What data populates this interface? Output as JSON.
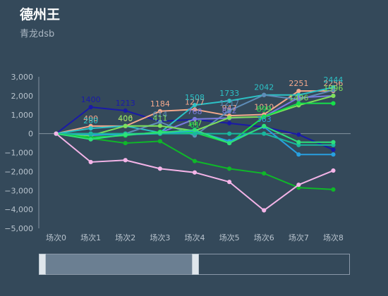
{
  "header": {
    "title": "德州王",
    "subtitle": "青龙dsb"
  },
  "slider": {
    "start": 0,
    "end": 0.5
  },
  "chart_data": {
    "type": "line",
    "categories": [
      "场次0",
      "场次1",
      "场次2",
      "场次3",
      "场次4",
      "场次5",
      "场次6",
      "场次7",
      "场次8"
    ],
    "ylim": [
      -5000,
      3000
    ],
    "yticks": [
      3000,
      2000,
      1000,
      0,
      -1000,
      -2000,
      -3000,
      -4000,
      -5000
    ],
    "ytick_labels": [
      "3,000",
      "2,000",
      "1,000",
      "0",
      "−1,000",
      "−2,000",
      "−3,000",
      "−4,000",
      "−5,000"
    ],
    "grid": false,
    "series": [
      {
        "color": "#1a1aa8",
        "values": [
          0,
          1400,
          1213,
          650,
          750,
          550,
          350,
          -50,
          -850
        ],
        "labels": {
          "1": "1400",
          "2": "1213"
        }
      },
      {
        "color": "#f4a98c",
        "values": [
          0,
          400,
          400,
          1184,
          1277,
          947,
          1010,
          2251,
          2256
        ],
        "labels": {
          "1": "400",
          "2": "400",
          "3": "1184",
          "4": "1277",
          "5": "947",
          "6": "1010",
          "7": "2251",
          "8": "2256"
        }
      },
      {
        "color": "#2cc2c6",
        "values": [
          0,
          280,
          406,
          54,
          1508,
          1733,
          2042,
          2042,
          2444
        ],
        "labels": {
          "1": "280",
          "4": "1508",
          "5": "1733",
          "6": "2042",
          "8": "2444"
        }
      },
      {
        "color": "#5e8db8",
        "values": [
          0,
          -100,
          0,
          614,
          -100,
          1217,
          2042,
          1800,
          2300
        ],
        "labels": {
          "3": "614",
          "5": "1217"
        }
      },
      {
        "color": "#7a7ae0",
        "values": [
          0,
          0,
          -50,
          50,
          768,
          822,
          900,
          1900,
          2000
        ],
        "labels": {
          "4": "768",
          "5": "822"
        }
      },
      {
        "color": "#7ee05a",
        "values": [
          0,
          -100,
          406,
          411,
          147,
          845,
          890,
          1496,
          1996
        ],
        "labels": {
          "2": "406",
          "3": "411",
          "4": "147",
          "7": "1496",
          "8": "1996"
        }
      },
      {
        "color": "#16e04a",
        "values": [
          0,
          -200,
          -100,
          100,
          61,
          -500,
          899,
          1600,
          1600
        ],
        "labels": {
          "4": "61",
          "6": "899"
        }
      },
      {
        "color": "#28a0e0",
        "values": [
          0,
          -50,
          -50,
          0,
          148,
          -400,
          363,
          -1100,
          -1100
        ],
        "labels": {
          "6": "363"
        }
      },
      {
        "color": "#19b89e",
        "values": [
          0,
          0,
          0,
          0,
          0,
          0,
          0,
          -600,
          -600
        ],
        "labels": {}
      },
      {
        "color": "#0fb829",
        "values": [
          0,
          -250,
          -500,
          -400,
          -1450,
          -1850,
          -2100,
          -2850,
          -2950
        ],
        "labels": {}
      },
      {
        "color": "#2ee07a",
        "values": [
          0,
          -300,
          -50,
          50,
          200,
          -500,
          400,
          -450,
          -450
        ],
        "labels": {}
      },
      {
        "color": "#f4b4e8",
        "values": [
          0,
          -1500,
          -1400,
          -1850,
          -2050,
          -2550,
          -4050,
          -2700,
          -1950
        ],
        "labels": {}
      }
    ]
  }
}
